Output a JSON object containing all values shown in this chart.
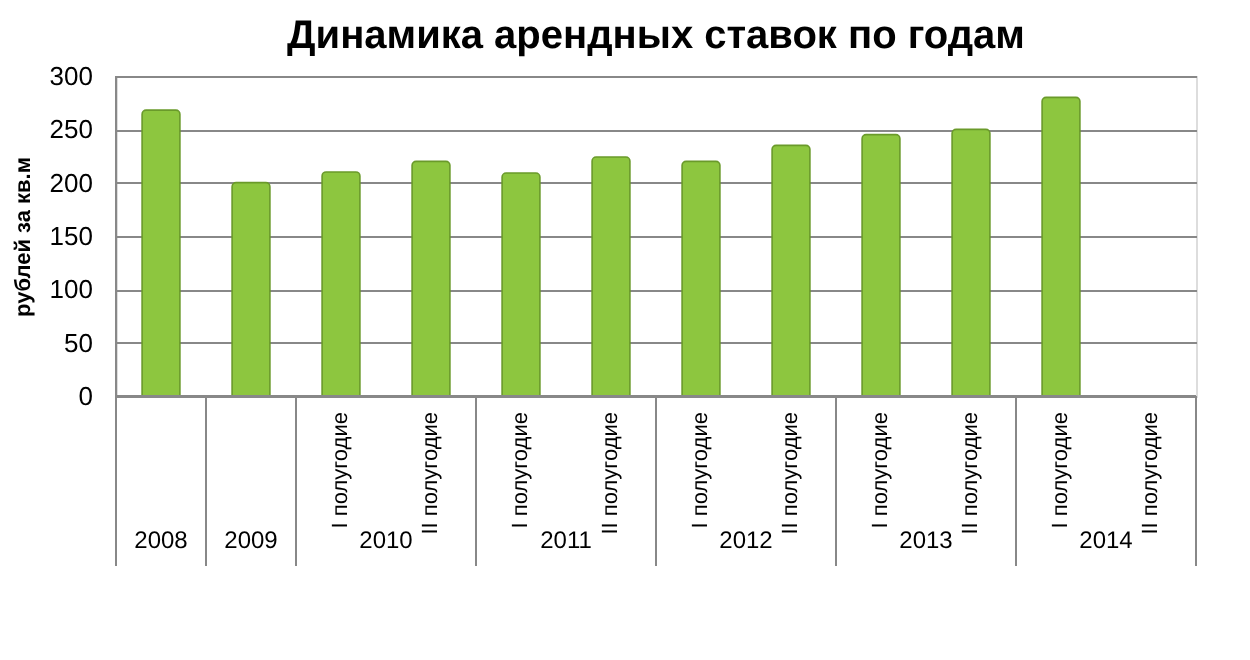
{
  "chart_data": {
    "type": "bar",
    "title": "Динамика арендных ставок по годам",
    "ylabel": "рублей за кв.м",
    "categories": [
      null,
      null,
      "I  полугодие",
      "II полугодие",
      "I  полугодие",
      "II полугодие",
      "I  полугодие",
      "II полугодие",
      "I  полугодие",
      "II полугодие",
      "I  полугодие",
      "II полугодие"
    ],
    "values": [
      268,
      200,
      210,
      220,
      209,
      224,
      220,
      235,
      245,
      250,
      280,
      null
    ],
    "color": "#8dc63f",
    "ylim": [
      0,
      300
    ],
    "yticks": [
      0,
      50,
      100,
      150,
      200,
      250,
      300
    ],
    "grid": "y",
    "annotations": [
      "2008",
      "2009",
      "2010",
      "2011",
      "2012",
      "2013",
      "2014"
    ]
  }
}
